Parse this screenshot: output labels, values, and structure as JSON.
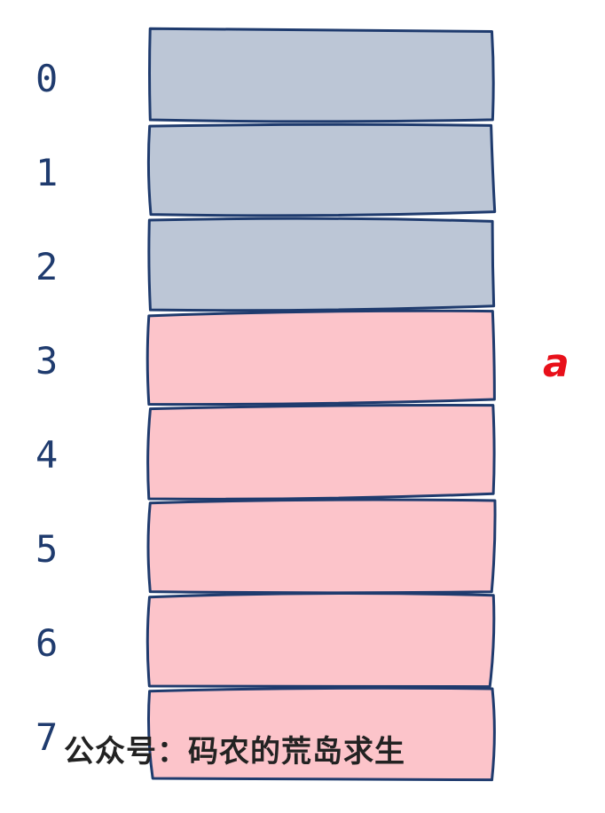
{
  "array": {
    "indices": [
      "0",
      "1",
      "2",
      "3",
      "4",
      "5",
      "6",
      "7"
    ],
    "cells": [
      {
        "state": "used"
      },
      {
        "state": "used"
      },
      {
        "state": "used"
      },
      {
        "state": "pointed"
      },
      {
        "state": "pointed"
      },
      {
        "state": "pointed"
      },
      {
        "state": "pointed"
      },
      {
        "state": "pointed"
      }
    ]
  },
  "pointer": {
    "label": "a",
    "target_index": 3
  },
  "watermark": "公众号：码农的荒岛求生",
  "colors": {
    "used_fill": "#bcc6d6",
    "pointed_fill": "#fcc4ca",
    "outline": "#1f3b6e",
    "index_text": "#1f3b6e",
    "pointer_text": "#e8101a"
  }
}
